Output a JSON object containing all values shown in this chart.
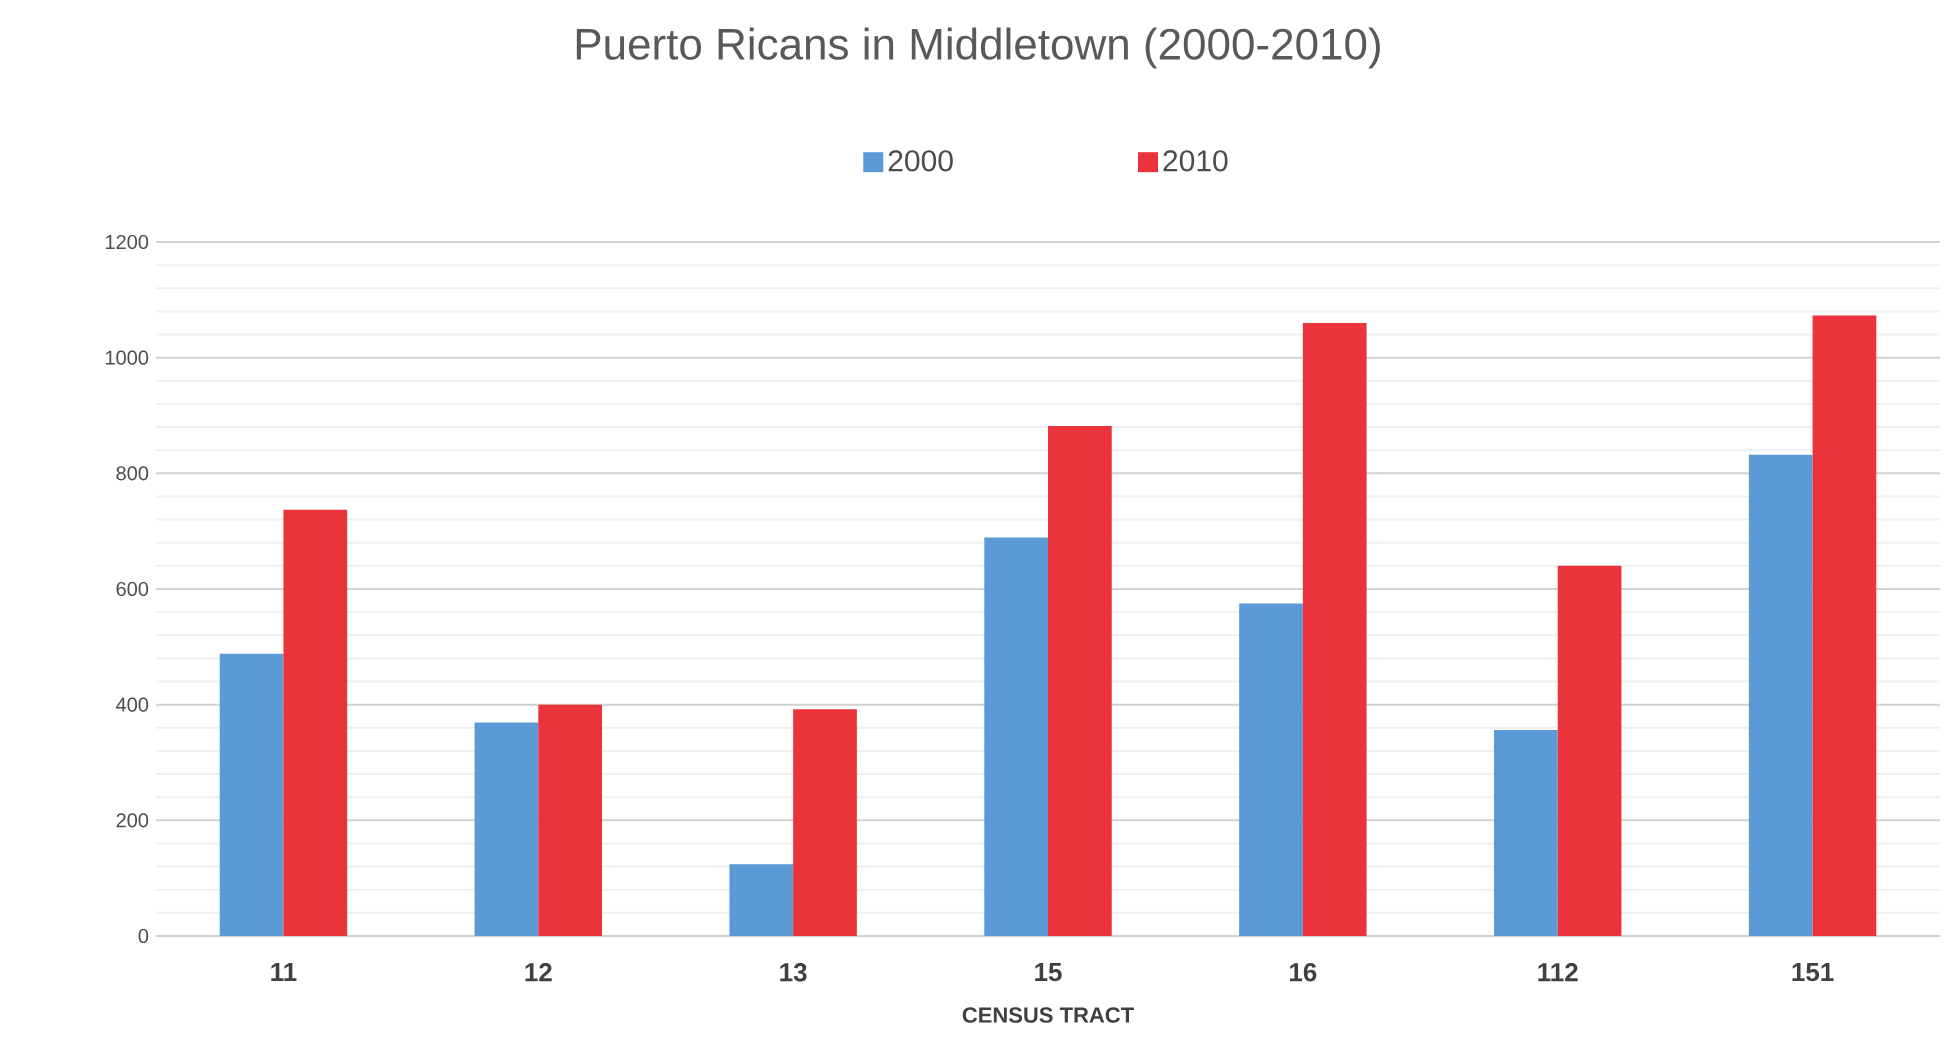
{
  "chart_data": {
    "type": "bar",
    "title": "Puerto Ricans in Middletown (2000-2010)",
    "xlabel": "CENSUS TRACT",
    "categories": [
      "11",
      "12",
      "13",
      "15",
      "16",
      "112",
      "151"
    ],
    "series": [
      {
        "name": "2000",
        "color": "#5b9bd5",
        "values": [
          488,
          369,
          124,
          689,
          575,
          356,
          832
        ]
      },
      {
        "name": "2010",
        "color": "#ea333b",
        "values": [
          737,
          400,
          392,
          882,
          1060,
          640,
          1073
        ]
      }
    ],
    "ylim": [
      0,
      1200
    ],
    "yticks": [
      0,
      200,
      400,
      600,
      800,
      1000,
      1200
    ],
    "grid": "y",
    "legend": "top"
  }
}
